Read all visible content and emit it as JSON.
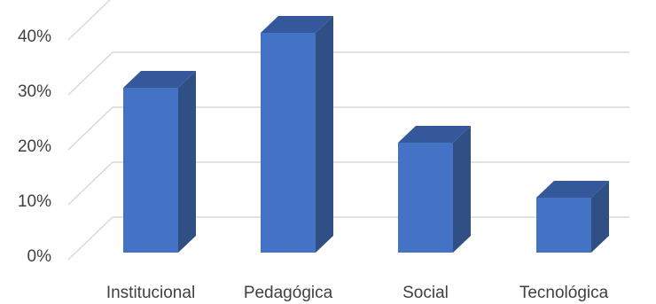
{
  "chart_data": {
    "type": "bar",
    "style": "3d-column",
    "categories": [
      "Institucional",
      "Pedagógica",
      "Social",
      "Tecnológica"
    ],
    "values": [
      30,
      40,
      20,
      10
    ],
    "y_ticks": [
      "0%",
      "10%",
      "20%",
      "30%",
      "40%"
    ],
    "ylim": [
      0,
      40
    ],
    "grid": true,
    "legend": "none",
    "colors": {
      "bar_front": "#4472c4",
      "bar_side": "#2f4f85",
      "bar_top": "#34589a",
      "gridline": "#d9d9d9",
      "text": "#404040"
    }
  }
}
